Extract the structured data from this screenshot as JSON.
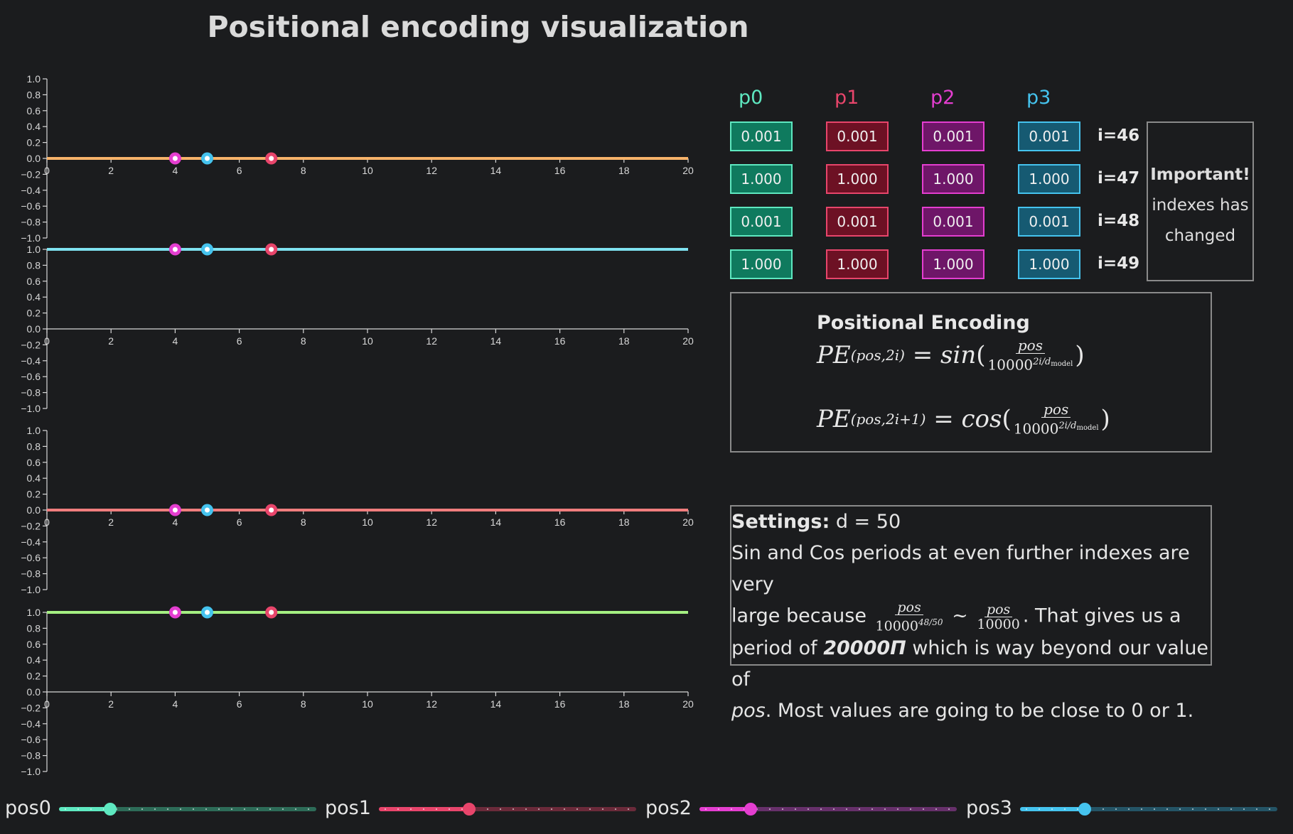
{
  "title": "Positional encoding visualization",
  "colors": {
    "p0": "#5ee8c0",
    "p1": "#e8456b",
    "p2": "#e43ed0",
    "p3": "#45c3ee",
    "line0": "#f7b36a",
    "line1": "#7fe2f0",
    "line2": "#f07d7d",
    "line3": "#a5ef82"
  },
  "chart_data": [
    {
      "type": "line",
      "xlim": [
        0,
        20
      ],
      "ylim": [
        -1,
        1
      ],
      "xticks": [
        0,
        2,
        4,
        6,
        8,
        10,
        12,
        14,
        16,
        18,
        20
      ],
      "yticks": [
        "1.0",
        "0.8",
        "0.6",
        "0.4",
        "0.2",
        "0.0",
        "−0.2",
        "−0.4",
        "−0.6",
        "−0.8",
        "−1.0"
      ],
      "series": [
        {
          "x": [
            0,
            20
          ],
          "y": [
            0.0,
            0.0
          ]
        }
      ],
      "points": [
        {
          "x": 4,
          "y": 0.0
        },
        {
          "x": 5,
          "y": 0.0
        },
        {
          "x": 7,
          "y": 0.0
        }
      ]
    },
    {
      "type": "line",
      "xlim": [
        0,
        20
      ],
      "ylim": [
        -1,
        1
      ],
      "xticks": [
        0,
        2,
        4,
        6,
        8,
        10,
        12,
        14,
        16,
        18,
        20
      ],
      "yticks": [
        "1.0",
        "0.8",
        "0.6",
        "0.4",
        "0.2",
        "0.0",
        "−0.2",
        "−0.4",
        "−0.6",
        "−0.8",
        "−1.0"
      ],
      "series": [
        {
          "x": [
            0,
            20
          ],
          "y": [
            1.0,
            1.0
          ]
        }
      ],
      "points": [
        {
          "x": 4,
          "y": 1.0
        },
        {
          "x": 5,
          "y": 1.0
        },
        {
          "x": 7,
          "y": 1.0
        }
      ]
    },
    {
      "type": "line",
      "xlim": [
        0,
        20
      ],
      "ylim": [
        -1,
        1
      ],
      "xticks": [
        0,
        2,
        4,
        6,
        8,
        10,
        12,
        14,
        16,
        18,
        20
      ],
      "yticks": [
        "1.0",
        "0.8",
        "0.6",
        "0.4",
        "0.2",
        "0.0",
        "−0.2",
        "−0.4",
        "−0.6",
        "−0.8",
        "−1.0"
      ],
      "series": [
        {
          "x": [
            0,
            20
          ],
          "y": [
            0.0,
            0.0
          ]
        }
      ],
      "points": [
        {
          "x": 4,
          "y": 0.0
        },
        {
          "x": 5,
          "y": 0.0
        },
        {
          "x": 7,
          "y": 0.0
        }
      ]
    },
    {
      "type": "line",
      "xlim": [
        0,
        20
      ],
      "ylim": [
        -1,
        1
      ],
      "xticks": [
        0,
        2,
        4,
        6,
        8,
        10,
        12,
        14,
        16,
        18,
        20
      ],
      "yticks": [
        "1.0",
        "0.8",
        "0.6",
        "0.4",
        "0.2",
        "0.0",
        "−0.2",
        "−0.4",
        "−0.6",
        "−0.8",
        "−1.0"
      ],
      "series": [
        {
          "x": [
            0,
            20
          ],
          "y": [
            1.0,
            1.0
          ]
        }
      ],
      "points": [
        {
          "x": 4,
          "y": 1.0
        },
        {
          "x": 5,
          "y": 1.0
        },
        {
          "x": 7,
          "y": 1.0
        }
      ]
    }
  ],
  "table": {
    "columns": [
      "p0",
      "p1",
      "p2",
      "p3"
    ],
    "rows": [
      {
        "label": "i=46",
        "values": [
          "0.001",
          "0.001",
          "0.001",
          "0.001"
        ]
      },
      {
        "label": "i=47",
        "values": [
          "1.000",
          "1.000",
          "1.000",
          "1.000"
        ]
      },
      {
        "label": "i=48",
        "values": [
          "0.001",
          "0.001",
          "0.001",
          "0.001"
        ]
      },
      {
        "label": "i=49",
        "values": [
          "1.000",
          "1.000",
          "1.000",
          "1.000"
        ]
      }
    ]
  },
  "important": {
    "title": "Important!",
    "line1": "indexes has",
    "line2": "changed"
  },
  "formula": {
    "title": "Positional Encoding"
  },
  "settings": {
    "label": "Settings:",
    "d_text": " d = 50",
    "text1": "Sin and Cos periods at even further indexes are very",
    "text2a": "large because",
    "text2b": ". That gives us a",
    "text3a": "period of ",
    "text3b": "20000Π",
    "text3c": " which is way beyond our value of",
    "text4a": "pos",
    "text4b": ". Most values are going to be close to 0 or 1."
  },
  "sliders": [
    {
      "label": "pos0",
      "value": 4
    },
    {
      "label": "pos1",
      "value": 7
    },
    {
      "label": "pos2",
      "value": 4
    },
    {
      "label": "pos3",
      "value": 5
    }
  ]
}
